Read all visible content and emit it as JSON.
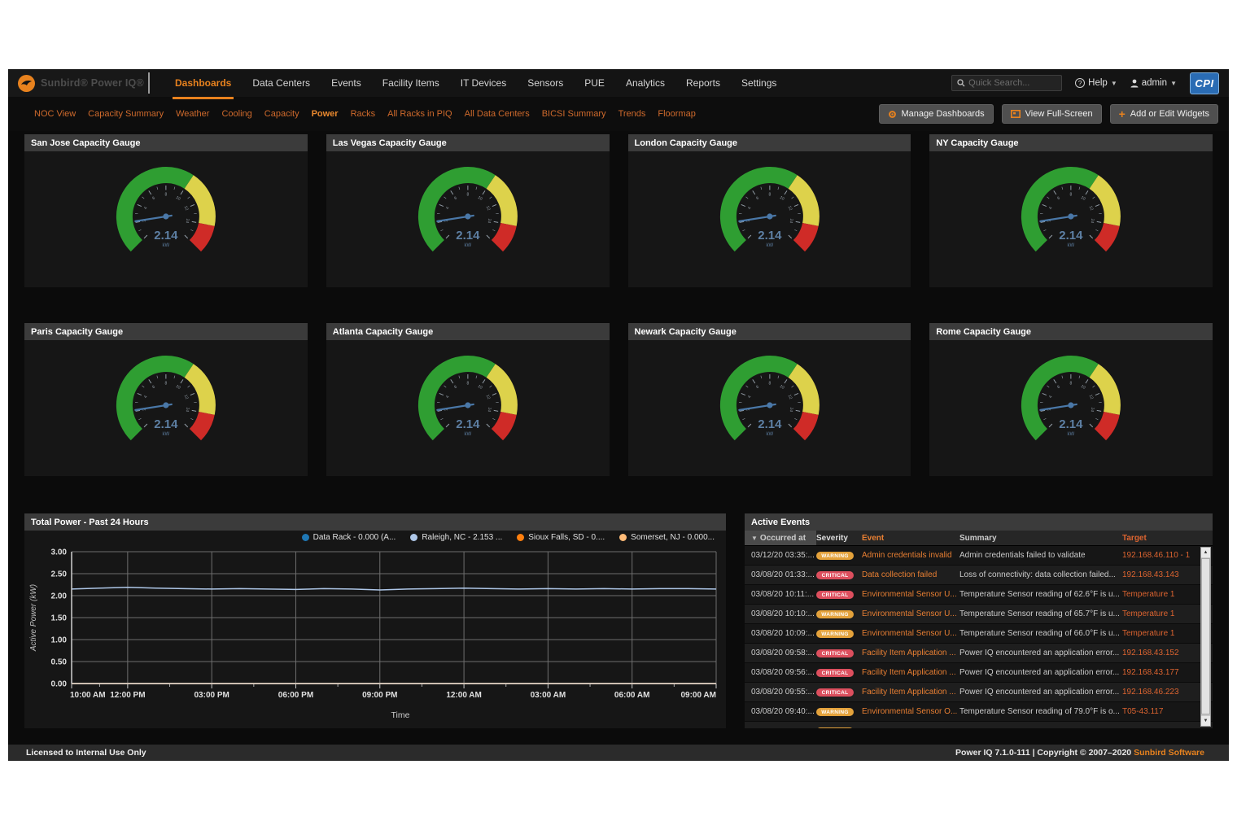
{
  "brand": {
    "name": "Sunbird® Power IQ®",
    "cpi_logo": "CPI"
  },
  "nav": {
    "items": [
      {
        "label": "Dashboards",
        "active": true
      },
      {
        "label": "Data Centers",
        "active": false
      },
      {
        "label": "Events",
        "active": false
      },
      {
        "label": "Facility Items",
        "active": false
      },
      {
        "label": "IT Devices",
        "active": false
      },
      {
        "label": "Sensors",
        "active": false
      },
      {
        "label": "PUE",
        "active": false
      },
      {
        "label": "Analytics",
        "active": false
      },
      {
        "label": "Reports",
        "active": false
      },
      {
        "label": "Settings",
        "active": false
      }
    ]
  },
  "header_actions": {
    "search_placeholder": "Quick Search...",
    "help_label": "Help",
    "user_label": "admin"
  },
  "subnav": {
    "items": [
      {
        "label": "NOC View",
        "active": false
      },
      {
        "label": "Capacity Summary",
        "active": false
      },
      {
        "label": "Weather",
        "active": false
      },
      {
        "label": "Cooling",
        "active": false
      },
      {
        "label": "Capacity",
        "active": false
      },
      {
        "label": "Power",
        "active": true
      },
      {
        "label": "Racks",
        "active": false
      },
      {
        "label": "All Racks in PIQ",
        "active": false
      },
      {
        "label": "All Data Centers",
        "active": false
      },
      {
        "label": "BICSI Summary",
        "active": false
      },
      {
        "label": "Trends",
        "active": false
      },
      {
        "label": "Floormap",
        "active": false
      }
    ]
  },
  "toolbar": {
    "manage_label": "Manage Dashboards",
    "fullscreen_label": "View Full-Screen",
    "add_widgets_label": "Add or Edit Widgets"
  },
  "gauge_config": {
    "min": 0,
    "max": 16,
    "zones": [
      {
        "from": 0,
        "to": 10,
        "color": "#2f9e32"
      },
      {
        "from": 10,
        "to": 14,
        "color": "#ddd24b"
      },
      {
        "from": 14,
        "to": 16,
        "color": "#cf2b27"
      }
    ],
    "needle_color": "#4a78a8",
    "value_color": "#5d7fa3",
    "tick_color": "#939da7"
  },
  "gauges": [
    {
      "title": "San Jose Capacity Gauge",
      "value": "2.14",
      "unit": "kW"
    },
    {
      "title": "Las Vegas Capacity Gauge",
      "value": "2.14",
      "unit": "kW"
    },
    {
      "title": "London Capacity Gauge",
      "value": "2.14",
      "unit": "kW"
    },
    {
      "title": "NY Capacity Gauge",
      "value": "2.14",
      "unit": "kW"
    },
    {
      "title": "Paris Capacity Gauge",
      "value": "2.14",
      "unit": "kW"
    },
    {
      "title": "Atlanta Capacity Gauge",
      "value": "2.14",
      "unit": "kW"
    },
    {
      "title": "Newark Capacity Gauge",
      "value": "2.14",
      "unit": "kW"
    },
    {
      "title": "Rome Capacity Gauge",
      "value": "2.14",
      "unit": "kW"
    }
  ],
  "chart_widget": {
    "title": "Total Power - Past 24 Hours"
  },
  "chart_data": {
    "type": "line",
    "title": "Total Power - Past 24 Hours",
    "xlabel": "Time",
    "ylabel": "Active Power (kW)",
    "ylim": [
      0,
      3.0
    ],
    "yticks": [
      0.0,
      0.5,
      1.0,
      1.5,
      2.0,
      2.5,
      3.0
    ],
    "grid": true,
    "legend_position": "top-right",
    "x_count": 24,
    "xticks": [
      {
        "label": "10:00 AM",
        "hour": 0
      },
      {
        "label": "12:00 PM",
        "hour": 2
      },
      {
        "label": "03:00 PM",
        "hour": 5
      },
      {
        "label": "06:00 PM",
        "hour": 8
      },
      {
        "label": "09:00 PM",
        "hour": 11
      },
      {
        "label": "12:00 AM",
        "hour": 14
      },
      {
        "label": "03:00 AM",
        "hour": 17
      },
      {
        "label": "06:00 AM",
        "hour": 20
      },
      {
        "label": "09:00 AM",
        "hour": 23
      }
    ],
    "series": [
      {
        "name": "Data Rack - 0.000 (A...",
        "color": "#1f77b4",
        "values": [
          0,
          0,
          0,
          0,
          0,
          0,
          0,
          0,
          0,
          0,
          0,
          0,
          0,
          0,
          0,
          0,
          0,
          0,
          0,
          0,
          0,
          0,
          0,
          0
        ]
      },
      {
        "name": "Raleigh, NC - 2.153 ...",
        "color": "#aec7e8",
        "values": [
          2.15,
          2.17,
          2.19,
          2.17,
          2.16,
          2.15,
          2.16,
          2.15,
          2.14,
          2.16,
          2.15,
          2.13,
          2.15,
          2.16,
          2.17,
          2.16,
          2.15,
          2.16,
          2.15,
          2.16,
          2.15,
          2.16,
          2.16,
          2.15
        ]
      },
      {
        "name": "Sioux Falls, SD - 0....",
        "color": "#ff7f0e",
        "values": [
          0,
          0,
          0,
          0,
          0,
          0,
          0,
          0,
          0,
          0,
          0,
          0,
          0,
          0,
          0,
          0,
          0,
          0,
          0,
          0,
          0,
          0,
          0,
          0
        ]
      },
      {
        "name": "Somerset, NJ - 0.000...",
        "color": "#ffbb78",
        "values": [
          0,
          0,
          0,
          0,
          0,
          0,
          0,
          0,
          0,
          0,
          0,
          0,
          0,
          0,
          0,
          0,
          0,
          0,
          0,
          0,
          0,
          0,
          0,
          0
        ]
      }
    ]
  },
  "events": {
    "title": "Active Events",
    "columns": [
      "Occurred at",
      "Severity",
      "Event",
      "Summary",
      "Target"
    ],
    "rows": [
      {
        "occurred_at": "03/12/20 03:35:...",
        "severity": "WARNING",
        "event": "Admin credentials invalid",
        "summary": "Admin credentials failed to validate",
        "target": "192.168.46.110 - 1"
      },
      {
        "occurred_at": "03/08/20 01:33:...",
        "severity": "CRITICAL",
        "event": "Data collection failed",
        "summary": "Loss of connectivity: data collection failed...",
        "target": "192.168.43.143"
      },
      {
        "occurred_at": "03/08/20 10:11:...",
        "severity": "CRITICAL",
        "event": "Environmental Sensor U...",
        "summary": "Temperature Sensor reading of 62.6°F is u...",
        "target": "Temperature 1"
      },
      {
        "occurred_at": "03/08/20 10:10:...",
        "severity": "WARNING",
        "event": "Environmental Sensor U...",
        "summary": "Temperature Sensor reading of 65.7°F is u...",
        "target": "Temperature 1"
      },
      {
        "occurred_at": "03/08/20 10:09:...",
        "severity": "WARNING",
        "event": "Environmental Sensor U...",
        "summary": "Temperature Sensor reading of 66.0°F is u...",
        "target": "Temperature 1"
      },
      {
        "occurred_at": "03/08/20 09:58:...",
        "severity": "CRITICAL",
        "event": "Facility Item Application ...",
        "summary": "Power IQ encountered an application error...",
        "target": "192.168.43.152"
      },
      {
        "occurred_at": "03/08/20 09:56:...",
        "severity": "CRITICAL",
        "event": "Facility Item Application ...",
        "summary": "Power IQ encountered an application error...",
        "target": "192.168.43.177"
      },
      {
        "occurred_at": "03/08/20 09:55:...",
        "severity": "CRITICAL",
        "event": "Facility Item Application ...",
        "summary": "Power IQ encountered an application error...",
        "target": "192.168.46.223"
      },
      {
        "occurred_at": "03/08/20 09:40:...",
        "severity": "WARNING",
        "event": "Environmental Sensor O...",
        "summary": "Temperature Sensor reading of 79.0°F is o...",
        "target": "T05-43.117"
      },
      {
        "occurred_at": "",
        "severity": "WARNING",
        "event": "",
        "summary": "",
        "target": ""
      }
    ]
  },
  "footer": {
    "left": "Licensed to Internal Use Only",
    "right_text": "Power IQ 7.1.0-111 | Copyright © 2007–2020 ",
    "right_link": "Sunbird Software"
  },
  "colors": {
    "accent": "#e8821e",
    "warning_badge": "#e4a23b",
    "critical_badge": "#dd4f5e"
  }
}
